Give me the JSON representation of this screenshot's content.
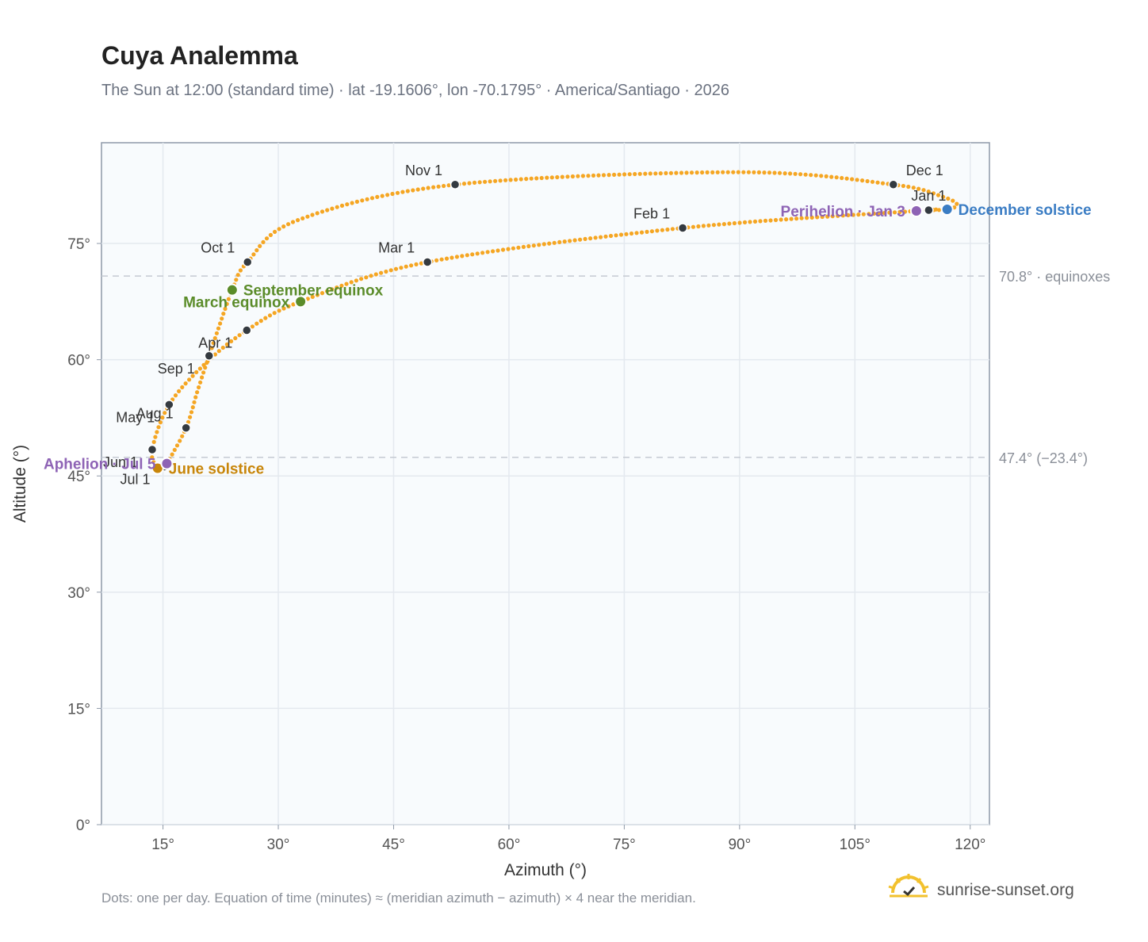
{
  "header": {
    "title": "Cuya Analemma",
    "subtitle": "The Sun at 12:00 (standard time) · lat -19.1606°, lon -70.1795° · America/Santiago · 2026"
  },
  "footer": {
    "note": "Dots: one per day. Equation of time (minutes) ≈ (meridian azimuth − azimuth) × 4 near the meridian.",
    "brand": "sunrise-sunset.org",
    "brand_icon": "sun-logo-icon"
  },
  "colors": {
    "curve": "#f5a623",
    "month_marker": "#343a40",
    "equinox": "#5b8c2a",
    "june_solstice": "#c8860a",
    "december_solstice": "#3b7dc4",
    "apsis": "#8e63b5",
    "plot_bg": "#f8fbfd",
    "grid": "#e4e9ef",
    "reference_line": "#c5cad2"
  },
  "chart_data": {
    "type": "scatter",
    "xlabel": "Azimuth (°)",
    "ylabel": "Altitude (°)",
    "xlim": [
      7,
      122.5
    ],
    "ylim": [
      0,
      88
    ],
    "x_ticks": [
      15,
      30,
      45,
      60,
      75,
      90,
      105,
      120
    ],
    "x_tick_labels": [
      "15°",
      "30°",
      "45°",
      "60°",
      "75°",
      "90°",
      "105°",
      "120°"
    ],
    "y_ticks": [
      0,
      15,
      30,
      45,
      60,
      75
    ],
    "y_tick_labels": [
      "0°",
      "15°",
      "30°",
      "45°",
      "60°",
      "75°"
    ],
    "grid": true,
    "reference_lines": [
      {
        "y": 70.8,
        "label": "70.8° · equinoxes"
      },
      {
        "y": 47.4,
        "label": "47.4° (−23.4°)"
      }
    ],
    "path_anchors": [
      {
        "date": "Jan 1",
        "az": 114.6,
        "alt": 79.3
      },
      {
        "date": "Jan 3",
        "az": 113.0,
        "alt": 79.2
      },
      {
        "date": "Feb 1",
        "az": 82.6,
        "alt": 77.0
      },
      {
        "date": "Mar 1",
        "az": 49.4,
        "alt": 72.6
      },
      {
        "date": "Mar 20",
        "az": 32.9,
        "alt": 67.5
      },
      {
        "date": "Apr 1",
        "az": 25.9,
        "alt": 63.8
      },
      {
        "date": "Apr 15",
        "az": 20.5,
        "alt": 59.5
      },
      {
        "date": "May 1",
        "az": 15.8,
        "alt": 54.2
      },
      {
        "date": "Jun 1",
        "az": 13.6,
        "alt": 48.4
      },
      {
        "date": "Jun 21",
        "az": 14.3,
        "alt": 46.0
      },
      {
        "date": "Jul 1",
        "az": 15.2,
        "alt": 46.2
      },
      {
        "date": "Jul 5",
        "az": 15.5,
        "alt": 46.6
      },
      {
        "date": "Aug 1",
        "az": 18.0,
        "alt": 51.2
      },
      {
        "date": "Aug 20",
        "az": 19.5,
        "alt": 56.0
      },
      {
        "date": "Sep 1",
        "az": 21.0,
        "alt": 60.5
      },
      {
        "date": "Sep 22",
        "az": 24.0,
        "alt": 69.0
      },
      {
        "date": "Oct 1",
        "az": 26.0,
        "alt": 72.6
      },
      {
        "date": "Oct 15",
        "az": 32.5,
        "alt": 78.0
      },
      {
        "date": "Nov 1",
        "az": 53.0,
        "alt": 82.6
      },
      {
        "date": "Nov 20",
        "az": 90.0,
        "alt": 84.2
      },
      {
        "date": "Dec 1",
        "az": 110.0,
        "alt": 82.6
      },
      {
        "date": "Dec 10",
        "az": 116.5,
        "alt": 81.0
      },
      {
        "date": "Dec 16",
        "az": 118.3,
        "alt": 80.0
      },
      {
        "date": "Dec 21",
        "az": 117.0,
        "alt": 79.4
      }
    ],
    "month_markers": [
      {
        "label": "Jan 1",
        "az": 114.6,
        "alt": 79.3,
        "label_pos": "above"
      },
      {
        "label": "Feb 1",
        "az": 82.6,
        "alt": 77.0,
        "label_pos": "above-left"
      },
      {
        "label": "Mar 1",
        "az": 49.4,
        "alt": 72.6,
        "label_pos": "above-left"
      },
      {
        "label": "Apr 1",
        "az": 25.9,
        "alt": 63.8,
        "label_pos": "below-left"
      },
      {
        "label": "May 1",
        "az": 15.8,
        "alt": 54.2,
        "label_pos": "below-left"
      },
      {
        "label": "Jun 1",
        "az": 13.6,
        "alt": 48.4,
        "label_pos": "below-left"
      },
      {
        "label": "Jul 1",
        "az": 15.2,
        "alt": 46.2,
        "label_pos": "below-left"
      },
      {
        "label": "Aug 1",
        "az": 18.0,
        "alt": 51.2,
        "label_pos": "above-left"
      },
      {
        "label": "Sep 1",
        "az": 21.0,
        "alt": 60.5,
        "label_pos": "below-left"
      },
      {
        "label": "Oct 1",
        "az": 26.0,
        "alt": 72.6,
        "label_pos": "above-left"
      },
      {
        "label": "Nov 1",
        "az": 53.0,
        "alt": 82.6,
        "label_pos": "above-left"
      },
      {
        "label": "Dec 1",
        "az": 110.0,
        "alt": 82.6,
        "label_pos": "above-right"
      }
    ],
    "events": [
      {
        "label": "March equinox",
        "az": 32.9,
        "alt": 67.5,
        "color_key": "equinox",
        "label_pos": "left"
      },
      {
        "label": "September equinox",
        "az": 24.0,
        "alt": 69.0,
        "color_key": "equinox",
        "label_pos": "right"
      },
      {
        "label": "June solstice",
        "az": 14.3,
        "alt": 46.0,
        "color_key": "june_solstice",
        "label_pos": "right"
      },
      {
        "label": "December solstice",
        "az": 117.0,
        "alt": 79.4,
        "color_key": "december_solstice",
        "label_pos": "right"
      },
      {
        "label": "Perihelion · Jan 3",
        "az": 113.0,
        "alt": 79.2,
        "color_key": "apsis",
        "label_pos": "left"
      },
      {
        "label": "Aphelion · Jul 5",
        "az": 15.5,
        "alt": 46.6,
        "color_key": "apsis",
        "label_pos": "left"
      }
    ]
  }
}
